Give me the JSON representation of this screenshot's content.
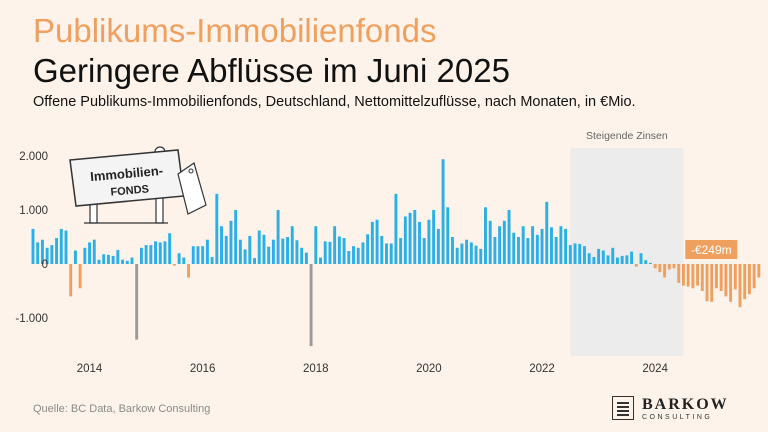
{
  "header": {
    "kicker": "Publikums-Immobilienfonds",
    "title": "Geringere Abflüsse im Juni 2025",
    "subtitle": "Offene Publikums-Immobilienfonds, Deutschland, Nettomittelzuflüsse, nach Monaten, in €Mio."
  },
  "source": "Quelle: BC Data, Barkow Consulting",
  "logo": {
    "name": "BARKOW",
    "sub": "CONSULTING"
  },
  "sign": {
    "line1": "Immobilien-",
    "line2": "FONDS"
  },
  "colors": {
    "positive": "#2ab0e6",
    "negative": "#f0a05e",
    "outlier": "#9a9a9a",
    "shade": "#ececec",
    "callout": "#f0a05e"
  },
  "chart_data": {
    "type": "bar",
    "ylim": [
      -1600,
      2150
    ],
    "yticks": [
      -1000,
      0,
      1000,
      2000
    ],
    "ytick_labels": [
      "-1.000",
      "0",
      "1.000",
      "2.000"
    ],
    "xticks": [
      2014,
      2016,
      2018,
      2020,
      2022,
      2024
    ],
    "xlim": [
      2013.0,
      2025.5
    ],
    "grid": false,
    "shaded_region": {
      "from": 2022.5,
      "to": 2024.5,
      "label": "Steigende Zinsen"
    },
    "callout": {
      "label": "-€249m",
      "value": -249,
      "month": "2025-06"
    },
    "series": [
      {
        "start": "2013-01",
        "values": [
          650,
          400,
          450,
          300,
          350,
          480,
          650,
          620,
          -600,
          250,
          -450,
          300,
          400,
          450,
          80,
          180,
          170,
          150,
          260,
          80,
          60,
          120,
          -1400,
          300,
          350,
          350,
          420,
          400,
          420,
          570,
          -30,
          200,
          120,
          -250,
          330,
          330,
          330,
          450,
          130,
          1300,
          700,
          520,
          800,
          1000,
          450,
          270,
          520,
          110,
          620,
          540,
          320,
          450,
          1000,
          470,
          500,
          700,
          440,
          300,
          210,
          -1520,
          700,
          120,
          420,
          410,
          700,
          510,
          480,
          240,
          330,
          300,
          400,
          550,
          780,
          820,
          520,
          380,
          380,
          1300,
          480,
          880,
          950,
          1000,
          780,
          480,
          820,
          1000,
          650,
          1940,
          1050,
          500,
          300,
          380,
          450,
          400,
          340,
          280,
          1050,
          800,
          500,
          700,
          800,
          1000,
          580,
          500,
          700,
          480,
          700,
          540,
          650,
          1150,
          680,
          500,
          700,
          650,
          350,
          380,
          370,
          330,
          200,
          130,
          280,
          250,
          160,
          300,
          120,
          150,
          160,
          230,
          -50,
          200,
          70,
          20,
          -80,
          -150,
          -250,
          -100,
          -80,
          -350,
          -400,
          -420,
          -450,
          -400,
          -500,
          -690,
          -700,
          -450,
          -500,
          -600,
          -700,
          -470,
          -800,
          -650,
          -560,
          -450,
          -249
        ]
      }
    ]
  }
}
